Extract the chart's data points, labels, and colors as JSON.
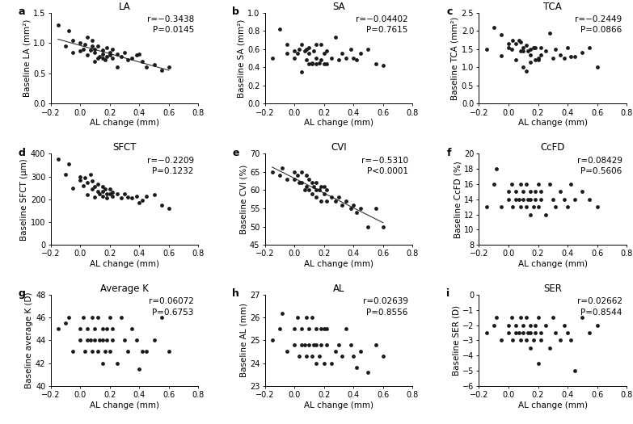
{
  "panels": [
    {
      "label": "a",
      "title": "LA",
      "ylabel": "Baseline LA (mm²)",
      "xlabel": "AL change (mm)",
      "r_text": "r=−0.3438",
      "p_text": "P=0.0145",
      "xlim": [
        -0.2,
        0.8
      ],
      "ylim": [
        0.0,
        1.5
      ],
      "xticks": [
        -0.2,
        0.0,
        0.2,
        0.4,
        0.6,
        0.8
      ],
      "yticks": [
        0.0,
        0.5,
        1.0,
        1.5
      ],
      "has_line": true,
      "x": [
        -0.15,
        -0.1,
        -0.08,
        -0.05,
        -0.05,
        0.0,
        0.0,
        0.02,
        0.03,
        0.05,
        0.05,
        0.07,
        0.08,
        0.08,
        0.1,
        0.1,
        0.1,
        0.12,
        0.12,
        0.13,
        0.15,
        0.15,
        0.15,
        0.17,
        0.18,
        0.18,
        0.2,
        0.2,
        0.22,
        0.22,
        0.25,
        0.25,
        0.28,
        0.3,
        0.32,
        0.35,
        0.38,
        0.4,
        0.42,
        0.45,
        0.5,
        0.55,
        0.6
      ],
      "y": [
        1.3,
        0.95,
        1.2,
        0.85,
        1.05,
        0.87,
        1.0,
        0.9,
        0.98,
        0.8,
        1.1,
        0.88,
        0.95,
        1.05,
        0.7,
        0.85,
        0.9,
        0.75,
        0.95,
        0.78,
        0.75,
        0.88,
        0.82,
        0.72,
        0.78,
        0.92,
        0.8,
        0.85,
        0.75,
        0.9,
        0.82,
        0.6,
        0.78,
        0.85,
        0.72,
        0.75,
        0.8,
        0.82,
        0.7,
        0.6,
        0.65,
        0.55,
        0.6
      ]
    },
    {
      "label": "b",
      "title": "SA",
      "ylabel": "Baseline SA (mm²)",
      "xlabel": "AL change (mm)",
      "r_text": "r=−0.04402",
      "p_text": "P=0.7615",
      "xlim": [
        -0.2,
        0.8
      ],
      "ylim": [
        0.0,
        1.0
      ],
      "xticks": [
        -0.2,
        0.0,
        0.2,
        0.4,
        0.6,
        0.8
      ],
      "yticks": [
        0.0,
        0.2,
        0.4,
        0.6,
        0.8,
        1.0
      ],
      "has_line": false,
      "x": [
        -0.15,
        -0.1,
        -0.05,
        -0.05,
        0.0,
        0.0,
        0.02,
        0.03,
        0.05,
        0.05,
        0.07,
        0.08,
        0.08,
        0.1,
        0.1,
        0.1,
        0.12,
        0.12,
        0.13,
        0.15,
        0.15,
        0.15,
        0.17,
        0.18,
        0.18,
        0.2,
        0.2,
        0.22,
        0.22,
        0.25,
        0.28,
        0.3,
        0.32,
        0.35,
        0.38,
        0.4,
        0.42,
        0.45,
        0.5,
        0.55,
        0.6
      ],
      "y": [
        0.5,
        0.82,
        0.55,
        0.65,
        0.5,
        0.58,
        0.55,
        0.6,
        0.35,
        0.65,
        0.58,
        0.6,
        0.48,
        0.44,
        0.55,
        0.62,
        0.44,
        0.45,
        0.58,
        0.44,
        0.5,
        0.65,
        0.45,
        0.48,
        0.65,
        0.44,
        0.55,
        0.44,
        0.58,
        0.5,
        0.73,
        0.48,
        0.55,
        0.5,
        0.6,
        0.5,
        0.48,
        0.55,
        0.6,
        0.44,
        0.42
      ]
    },
    {
      "label": "c",
      "title": "TCA",
      "ylabel": "Baseline TCA (mm²)",
      "xlabel": "AL change (mm)",
      "r_text": "r=−0.2449",
      "p_text": "P=0.0866",
      "xlim": [
        -0.2,
        0.8
      ],
      "ylim": [
        0.0,
        2.5
      ],
      "xticks": [
        -0.2,
        0.0,
        0.2,
        0.4,
        0.6,
        0.8
      ],
      "yticks": [
        0.0,
        0.5,
        1.0,
        1.5,
        2.0,
        2.5
      ],
      "has_line": false,
      "x": [
        -0.15,
        -0.1,
        -0.05,
        -0.05,
        0.0,
        0.0,
        0.02,
        0.03,
        0.05,
        0.05,
        0.07,
        0.08,
        0.08,
        0.1,
        0.1,
        0.1,
        0.12,
        0.12,
        0.13,
        0.15,
        0.15,
        0.15,
        0.17,
        0.18,
        0.18,
        0.2,
        0.2,
        0.22,
        0.22,
        0.25,
        0.28,
        0.3,
        0.32,
        0.35,
        0.38,
        0.4,
        0.42,
        0.45,
        0.5,
        0.55,
        0.6
      ],
      "y": [
        1.5,
        2.1,
        1.32,
        1.9,
        1.55,
        1.65,
        1.5,
        1.75,
        1.2,
        1.65,
        1.75,
        1.7,
        1.45,
        1.0,
        1.45,
        1.55,
        0.9,
        1.6,
        1.45,
        1.15,
        1.5,
        1.35,
        1.55,
        1.2,
        1.55,
        1.25,
        1.2,
        1.35,
        1.55,
        1.45,
        1.95,
        1.25,
        1.5,
        1.35,
        1.25,
        1.55,
        1.3,
        1.3,
        1.4,
        1.55,
        1.0
      ]
    },
    {
      "label": "d",
      "title": "SFCT",
      "ylabel": "Baseline SFCT (μm)",
      "xlabel": "AL change (mm)",
      "r_text": "r=−0.2209",
      "p_text": "P=0.1232",
      "xlim": [
        -0.2,
        0.8
      ],
      "ylim": [
        0,
        400
      ],
      "xticks": [
        -0.2,
        0.0,
        0.2,
        0.4,
        0.6,
        0.8
      ],
      "yticks": [
        0,
        100,
        200,
        300,
        400
      ],
      "has_line": false,
      "x": [
        -0.15,
        -0.1,
        -0.08,
        -0.05,
        0.0,
        0.0,
        0.02,
        0.03,
        0.05,
        0.05,
        0.07,
        0.08,
        0.08,
        0.1,
        0.1,
        0.12,
        0.12,
        0.13,
        0.15,
        0.15,
        0.15,
        0.17,
        0.18,
        0.18,
        0.2,
        0.2,
        0.22,
        0.22,
        0.25,
        0.28,
        0.3,
        0.32,
        0.35,
        0.38,
        0.4,
        0.42,
        0.45,
        0.5,
        0.55,
        0.6
      ],
      "y": [
        375,
        310,
        355,
        250,
        300,
        285,
        260,
        295,
        220,
        275,
        310,
        280,
        245,
        210,
        255,
        235,
        265,
        225,
        215,
        255,
        235,
        245,
        205,
        225,
        225,
        245,
        215,
        230,
        225,
        205,
        225,
        210,
        205,
        215,
        185,
        195,
        215,
        220,
        175,
        160
      ]
    },
    {
      "label": "e",
      "title": "CVI",
      "ylabel": "Baseline CVI (%)",
      "xlabel": "AL change (mm)",
      "r_text": "r=−0.5310",
      "p_text": "P<0.0001",
      "xlim": [
        -0.2,
        0.8
      ],
      "ylim": [
        45,
        70
      ],
      "xticks": [
        -0.2,
        0.0,
        0.2,
        0.4,
        0.6,
        0.8
      ],
      "yticks": [
        45,
        50,
        55,
        60,
        65,
        70
      ],
      "has_line": true,
      "x": [
        -0.15,
        -0.1,
        -0.08,
        -0.05,
        0.0,
        0.0,
        0.02,
        0.03,
        0.05,
        0.05,
        0.07,
        0.08,
        0.08,
        0.1,
        0.1,
        0.12,
        0.12,
        0.13,
        0.15,
        0.15,
        0.15,
        0.17,
        0.18,
        0.18,
        0.2,
        0.2,
        0.22,
        0.22,
        0.25,
        0.28,
        0.3,
        0.32,
        0.35,
        0.38,
        0.4,
        0.42,
        0.45,
        0.5,
        0.55,
        0.6
      ],
      "y": [
        65,
        64,
        66,
        63,
        63,
        65,
        64,
        62,
        62,
        65,
        60,
        64,
        61,
        60,
        63,
        59,
        62,
        61,
        58,
        62,
        60,
        60,
        57,
        61,
        59,
        61,
        57,
        60,
        58,
        57,
        58,
        56,
        57,
        55,
        56,
        54,
        55,
        50,
        55,
        50
      ]
    },
    {
      "label": "f",
      "title": "CcFD",
      "ylabel": "Baseline CcFD (%)",
      "xlabel": "AL change (mm)",
      "r_text": "r=0.08429",
      "p_text": "P=0.5606",
      "xlim": [
        -0.2,
        0.8
      ],
      "ylim": [
        8,
        20
      ],
      "xticks": [
        -0.2,
        0.0,
        0.2,
        0.4,
        0.6,
        0.8
      ],
      "yticks": [
        8,
        10,
        12,
        14,
        16,
        18,
        20
      ],
      "has_line": false,
      "x": [
        -0.15,
        -0.1,
        -0.08,
        -0.05,
        0.0,
        0.0,
        0.02,
        0.03,
        0.05,
        0.05,
        0.07,
        0.08,
        0.08,
        0.1,
        0.1,
        0.12,
        0.12,
        0.13,
        0.15,
        0.15,
        0.15,
        0.17,
        0.18,
        0.18,
        0.2,
        0.2,
        0.22,
        0.22,
        0.25,
        0.28,
        0.3,
        0.32,
        0.35,
        0.38,
        0.4,
        0.42,
        0.45,
        0.5,
        0.55,
        0.6
      ],
      "y": [
        13,
        16,
        18,
        13,
        15,
        14,
        16,
        13,
        14,
        15,
        14,
        16,
        13,
        14,
        15,
        13,
        16,
        14,
        12,
        15,
        14,
        13,
        15,
        14,
        16,
        13,
        14,
        15,
        12,
        16,
        14,
        13,
        15,
        14,
        13,
        16,
        14,
        15,
        14,
        13
      ]
    },
    {
      "label": "g",
      "title": "Average K",
      "ylabel": "Baseline average K (D)",
      "xlabel": "AL change (mm)",
      "r_text": "r=0.06072",
      "p_text": "P=0.6753",
      "xlim": [
        -0.2,
        0.8
      ],
      "ylim": [
        40,
        48
      ],
      "xticks": [
        -0.2,
        0.0,
        0.2,
        0.4,
        0.6,
        0.8
      ],
      "yticks": [
        40,
        42,
        44,
        46,
        48
      ],
      "has_line": false,
      "x": [
        -0.15,
        -0.1,
        -0.08,
        -0.05,
        0.0,
        0.0,
        0.02,
        0.03,
        0.05,
        0.05,
        0.07,
        0.08,
        0.08,
        0.1,
        0.1,
        0.12,
        0.12,
        0.13,
        0.15,
        0.15,
        0.15,
        0.17,
        0.18,
        0.18,
        0.2,
        0.2,
        0.22,
        0.22,
        0.25,
        0.28,
        0.3,
        0.32,
        0.35,
        0.38,
        0.4,
        0.42,
        0.45,
        0.5,
        0.55,
        0.6
      ],
      "y": [
        45,
        45.5,
        46,
        43,
        45,
        44,
        46,
        43,
        44,
        45,
        44,
        46,
        43,
        44,
        45,
        43,
        46,
        44,
        42,
        45,
        44,
        43,
        45,
        44,
        46,
        43,
        44,
        45,
        42,
        46,
        44,
        43,
        45,
        44,
        41.5,
        43,
        43,
        44,
        46,
        43
      ]
    },
    {
      "label": "h",
      "title": "AL",
      "ylabel": "Baseline AL (mm)",
      "xlabel": "AL change (mm)",
      "r_text": "r=0.02639",
      "p_text": "P=0.8556",
      "xlim": [
        -0.2,
        0.8
      ],
      "ylim": [
        23,
        27
      ],
      "xticks": [
        -0.2,
        0.0,
        0.2,
        0.4,
        0.6,
        0.8
      ],
      "yticks": [
        23,
        24,
        25,
        26,
        27
      ],
      "has_line": false,
      "x": [
        -0.15,
        -0.1,
        -0.08,
        -0.05,
        0.0,
        0.0,
        0.02,
        0.03,
        0.05,
        0.05,
        0.07,
        0.08,
        0.08,
        0.1,
        0.1,
        0.12,
        0.12,
        0.13,
        0.15,
        0.15,
        0.15,
        0.17,
        0.18,
        0.18,
        0.2,
        0.2,
        0.22,
        0.22,
        0.25,
        0.28,
        0.3,
        0.32,
        0.35,
        0.38,
        0.4,
        0.42,
        0.45,
        0.5,
        0.55,
        0.6
      ],
      "y": [
        25.0,
        25.5,
        26.2,
        24.5,
        25.5,
        24.8,
        26.0,
        24.3,
        24.8,
        25.5,
        24.8,
        26.0,
        24.3,
        24.8,
        25.5,
        24.3,
        26.0,
        24.8,
        24.0,
        25.5,
        24.8,
        24.3,
        25.5,
        24.8,
        24.0,
        25.5,
        24.8,
        25.5,
        24.0,
        24.5,
        24.8,
        24.3,
        25.5,
        24.8,
        24.3,
        23.8,
        24.5,
        23.6,
        24.8,
        24.3
      ]
    },
    {
      "label": "i",
      "title": "SER",
      "ylabel": "Baseline SER (D)",
      "xlabel": "AL change (mm)",
      "r_text": "r=0.02662",
      "p_text": "P=0.8544",
      "xlim": [
        -0.2,
        0.8
      ],
      "ylim": [
        -6,
        0
      ],
      "xticks": [
        -0.2,
        0.0,
        0.2,
        0.4,
        0.6,
        0.8
      ],
      "yticks": [
        -6,
        -5,
        -4,
        -3,
        -2,
        -1,
        0
      ],
      "has_line": false,
      "x": [
        -0.15,
        -0.1,
        -0.08,
        -0.05,
        0.0,
        0.0,
        0.02,
        0.03,
        0.05,
        0.05,
        0.07,
        0.08,
        0.08,
        0.1,
        0.1,
        0.12,
        0.12,
        0.13,
        0.15,
        0.15,
        0.15,
        0.17,
        0.18,
        0.18,
        0.2,
        0.2,
        0.22,
        0.22,
        0.25,
        0.28,
        0.3,
        0.32,
        0.35,
        0.38,
        0.4,
        0.42,
        0.45,
        0.5,
        0.55,
        0.6
      ],
      "y": [
        -2.5,
        -2.0,
        -1.5,
        -3.0,
        -2.0,
        -2.5,
        -1.5,
        -3.0,
        -2.5,
        -2.0,
        -2.5,
        -1.5,
        -3.0,
        -2.5,
        -2.0,
        -3.0,
        -1.5,
        -2.5,
        -3.5,
        -2.0,
        -2.5,
        -3.0,
        -2.0,
        -2.5,
        -4.5,
        -1.5,
        -3.0,
        -2.5,
        -2.0,
        -3.5,
        -1.5,
        -2.5,
        -3.0,
        -2.0,
        -2.5,
        -3.0,
        -5.0,
        -1.5,
        -2.5,
        -2.0
      ]
    }
  ],
  "dot_color": "#1a1a1a",
  "dot_size": 12,
  "line_color": "#333333",
  "annotation_fontsize": 7.5,
  "label_fontsize": 7.5,
  "title_fontsize": 8.5,
  "tick_fontsize": 7,
  "panel_label_fontsize": 9
}
